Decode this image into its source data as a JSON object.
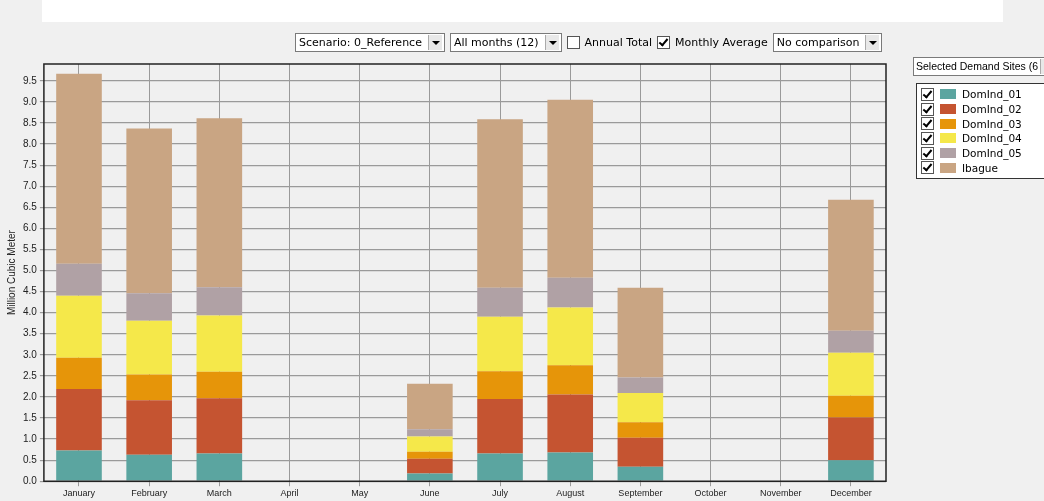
{
  "chart_data": {
    "type": "bar",
    "stacked": true,
    "ylabel": "Million Cubic Meter",
    "categories": [
      "January",
      "February",
      "March",
      "April",
      "May",
      "June",
      "July",
      "August",
      "September",
      "October",
      "November",
      "December"
    ],
    "series": [
      {
        "name": "DomInd_01",
        "color": "#5ba5a0",
        "values": [
          0.73,
          0.63,
          0.66,
          0,
          0,
          0.18,
          0.66,
          0.68,
          0.34,
          0,
          0,
          0.5
        ]
      },
      {
        "name": "DomInd_02",
        "color": "#c55431",
        "values": [
          1.46,
          1.29,
          1.31,
          0,
          0,
          0.35,
          1.29,
          1.38,
          0.69,
          0,
          0,
          1.01
        ]
      },
      {
        "name": "DomInd_03",
        "color": "#e69509",
        "values": [
          0.74,
          0.61,
          0.63,
          0,
          0,
          0.17,
          0.66,
          0.69,
          0.37,
          0,
          0,
          0.52
        ]
      },
      {
        "name": "DomInd_04",
        "color": "#f5e84a",
        "values": [
          1.47,
          1.28,
          1.33,
          0,
          0,
          0.36,
          1.29,
          1.37,
          0.69,
          0,
          0,
          1.02
        ]
      },
      {
        "name": "DomInd_05",
        "color": "#b0a1a5",
        "values": [
          0.76,
          0.65,
          0.67,
          0,
          0,
          0.17,
          0.69,
          0.71,
          0.37,
          0,
          0,
          0.52
        ]
      },
      {
        "name": "Ibague",
        "color": "#c9a583",
        "values": [
          4.51,
          3.91,
          4.01,
          0,
          0,
          1.08,
          4.0,
          4.22,
          2.13,
          0,
          0,
          3.11
        ]
      }
    ],
    "ylim": [
      0,
      9.9
    ],
    "yticks": [
      {
        "value": 0,
        "label": "0.0"
      },
      0.5,
      {
        "value": 1,
        "label": "1.0"
      },
      1.5,
      {
        "value": 2,
        "label": "2.0"
      },
      2.5,
      {
        "value": 3,
        "label": "3.0"
      },
      3.5,
      {
        "value": 4,
        "label": "4.0"
      },
      4.5,
      {
        "value": 5,
        "label": "5.0"
      },
      5.5,
      {
        "value": 6,
        "label": "6.0"
      },
      6.5,
      {
        "value": 7,
        "label": "7.0"
      },
      7.5,
      {
        "value": 8,
        "label": "8.0"
      },
      8.5,
      {
        "value": 9,
        "label": "9.0"
      },
      9.5
    ],
    "grid": true,
    "legend": "top right",
    "annotations": [
      "Scenario: 0_Reference",
      "All months (12)",
      "Annual Total",
      "Monthly Average",
      "No comparison",
      "Selected Demand Sites (6"
    ]
  }
}
